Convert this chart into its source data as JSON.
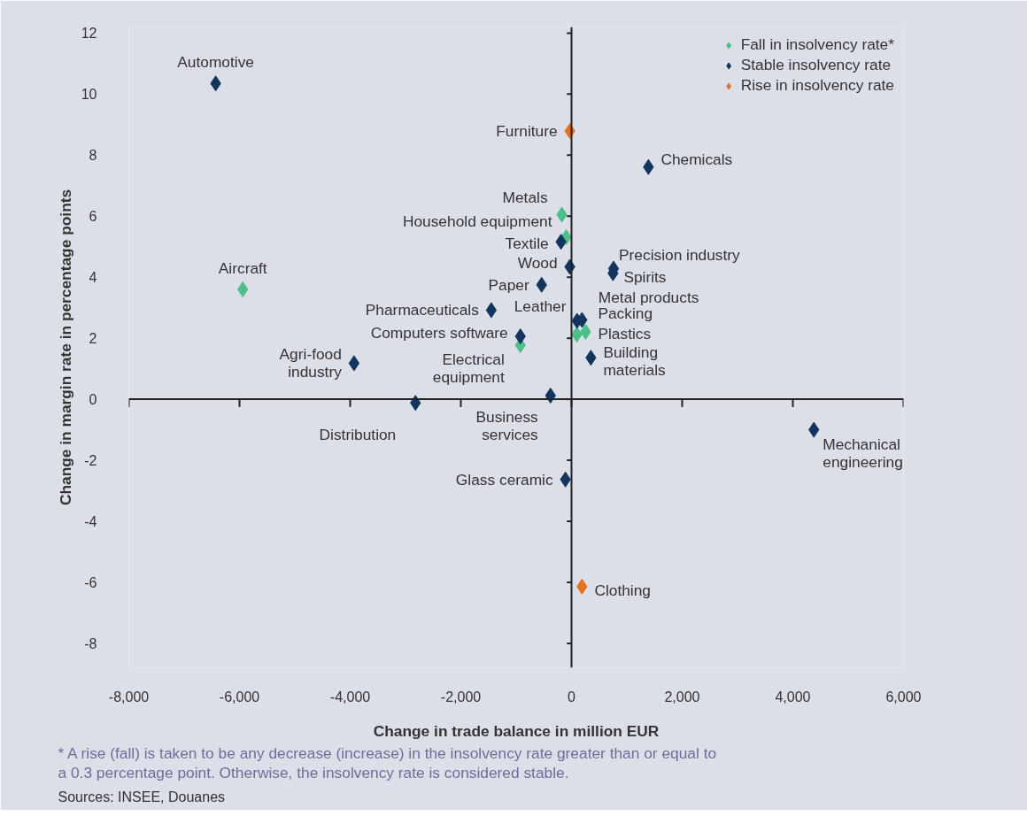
{
  "chart_data": {
    "type": "scatter",
    "xlabel": "Change in trade balance in million EUR",
    "ylabel": "Change in margin rate in percentage points",
    "xlim": [
      -8000,
      6000
    ],
    "ylim": [
      -8.8,
      12.2
    ],
    "xticks": [
      {
        "value": -8000,
        "label": "-8,000"
      },
      {
        "value": -6000,
        "label": "-6,000"
      },
      {
        "value": -4000,
        "label": "-4,000"
      },
      {
        "value": -2000,
        "label": "-2,000"
      },
      0,
      {
        "value": 2000,
        "label": "2,000"
      },
      {
        "value": 4000,
        "label": "4,000"
      },
      {
        "value": 6000,
        "label": "6,000"
      }
    ],
    "yticks": [
      -8,
      -6,
      -4,
      -2,
      0,
      2,
      4,
      6,
      8,
      10,
      12
    ],
    "marker": "diamond",
    "legend": "top right",
    "series": [
      {
        "name": "Fall in insolvency rate*",
        "color": "#4dbf8a",
        "x": [
          -5940,
          -924,
          -96,
          -175,
          96,
          255
        ],
        "values": [
          3.6,
          1.77,
          5.31,
          6.05,
          2.12,
          2.21
        ]
      },
      {
        "name": "Stable insolvency rate",
        "color": "#12365f",
        "x": [
          -6430,
          -3930,
          -2820,
          -924,
          -1450,
          -540,
          -30,
          -190,
          1390,
          760,
          750,
          100,
          190,
          350,
          -380,
          -110,
          4380
        ],
        "values": [
          10.35,
          1.18,
          -0.12,
          2.06,
          2.92,
          3.75,
          4.34,
          5.16,
          7.61,
          4.28,
          4.13,
          2.57,
          2.6,
          1.36,
          0.12,
          -2.63,
          -1.0
        ]
      },
      {
        "name": "Rise in insolvency rate",
        "color": "#e8711c",
        "x": [
          -30,
          190
        ],
        "values": [
          8.79,
          -6.14
        ]
      }
    ],
    "annotations": [
      {
        "text": "Automotive",
        "x": -6430,
        "y": 10.35
      },
      {
        "text": "Aircraft",
        "x": -5940,
        "y": 3.6
      },
      {
        "text": "Agri-food\nindustry",
        "x": -3930,
        "y": 1.18
      },
      {
        "text": "Distribution",
        "x": -2820,
        "y": -0.12
      },
      {
        "text": "Electrical\nequipment",
        "x": -924,
        "y": 1.77
      },
      {
        "text": "Computers software",
        "x": -924,
        "y": 2.06
      },
      {
        "text": "Pharmaceuticals",
        "x": -1450,
        "y": 2.92
      },
      {
        "text": "Paper",
        "x": -540,
        "y": 3.75
      },
      {
        "text": "Wood",
        "x": -30,
        "y": 4.34
      },
      {
        "text": "Textile",
        "x": -190,
        "y": 5.16
      },
      {
        "text": "Household equipment",
        "x": -96,
        "y": 5.31
      },
      {
        "text": "Metals",
        "x": -175,
        "y": 6.05
      },
      {
        "text": "Furniture",
        "x": -30,
        "y": 8.79
      },
      {
        "text": "Chemicals",
        "x": 1390,
        "y": 7.61
      },
      {
        "text": "Precision industry",
        "x": 760,
        "y": 4.28
      },
      {
        "text": "Spirits",
        "x": 750,
        "y": 4.13
      },
      {
        "text": "Metal products",
        "x": 100,
        "y": 2.57
      },
      {
        "text": "Packing",
        "x": 190,
        "y": 2.6
      },
      {
        "text": "Leather",
        "x": 96,
        "y": 2.12
      },
      {
        "text": "Plastics",
        "x": 255,
        "y": 2.21
      },
      {
        "text": "Building\nmaterials",
        "x": 350,
        "y": 1.36
      },
      {
        "text": "Business\nservices",
        "x": -380,
        "y": 0.12
      },
      {
        "text": "Glass ceramic",
        "x": -110,
        "y": -2.63
      },
      {
        "text": "Clothing",
        "x": 190,
        "y": -6.14
      },
      {
        "text": "Mechanical\nengineering",
        "x": 4380,
        "y": -1.0
      },
      "* A rise (fall) is taken to be any decrease (increase) in the insolvency rate greater than or equal to",
      "  a 0.3 percentage point. Otherwise, the insolvency rate is considered stable.",
      "Sources: INSEE, Douanes"
    ]
  }
}
